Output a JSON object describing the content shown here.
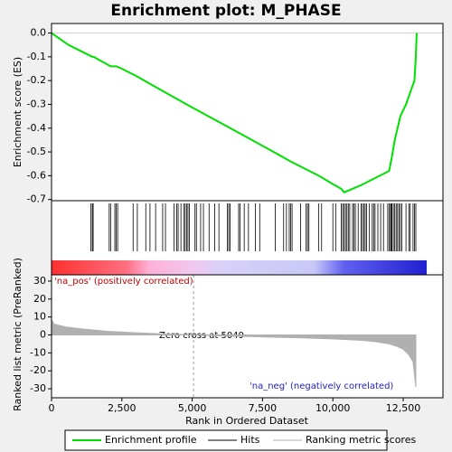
{
  "chart_data": {
    "type": "gsea",
    "title": "Enrichment plot: M_PHASE",
    "xlabel": "Rank in Ordered Dataset",
    "xlim": [
      0,
      13914
    ],
    "xticks": [
      0,
      {
        "value": 2500,
        "label": "2,500"
      },
      {
        "value": 5000,
        "label": "5,000"
      },
      {
        "value": 7500,
        "label": "7,500"
      },
      {
        "value": 10000,
        "label": "10,000"
      },
      {
        "value": 12500,
        "label": "12,500"
      }
    ],
    "es": {
      "name": "Enrichment profile",
      "ylabel": "Enrichment score (ES)",
      "color": "#00e000",
      "ylim": [
        -0.705,
        0.04
      ],
      "yticks": [
        {
          "value": 0,
          "label": "0.0"
        },
        -0.1,
        -0.2,
        -0.3,
        -0.4,
        -0.5,
        -0.6,
        -0.7
      ],
      "x": [
        0,
        600,
        1450,
        1500,
        2100,
        2300,
        2500,
        3000,
        4000,
        5000,
        6000,
        7000,
        8000,
        8500,
        9000,
        9500,
        10000,
        10300,
        10400,
        10600,
        11000,
        11500,
        12000,
        12100,
        12200,
        12400,
        12600,
        12750,
        12900,
        12950,
        12980
      ],
      "values": [
        0,
        -0.05,
        -0.1,
        -0.1,
        -0.14,
        -0.14,
        -0.15,
        -0.18,
        -0.247,
        -0.313,
        -0.377,
        -0.442,
        -0.507,
        -0.54,
        -0.57,
        -0.6,
        -0.635,
        -0.655,
        -0.67,
        -0.66,
        -0.64,
        -0.61,
        -0.58,
        -0.52,
        -0.45,
        -0.35,
        -0.3,
        -0.25,
        -0.2,
        -0.1,
        0
      ]
    },
    "hits": {
      "name": "Hits",
      "x": [
        1400,
        1450,
        1480,
        2050,
        2100,
        2250,
        2300,
        2350,
        2900,
        3050,
        3350,
        3500,
        3700,
        3950,
        4050,
        4350,
        4450,
        4500,
        4600,
        4700,
        4750,
        4800,
        4850,
        4900,
        5100,
        5150,
        5300,
        5400,
        5600,
        5800,
        5950,
        6250,
        6300,
        6350,
        6650,
        6700,
        6850,
        7000,
        7250,
        7400,
        7950,
        8250,
        8350,
        8450,
        8500,
        8550,
        8850,
        9050,
        9100,
        9150,
        9500,
        9600,
        10000,
        10100,
        10300,
        10350,
        10400,
        10450,
        10500,
        10550,
        10600,
        10700,
        10750,
        10800,
        10900,
        11000,
        11050,
        11100,
        11150,
        11200,
        11300,
        11400,
        11450,
        11500,
        11600,
        11700,
        11800,
        11950,
        12000,
        12050,
        12080,
        12100,
        12150,
        12200,
        12250,
        12300,
        12350,
        12400,
        12450,
        12600,
        12700,
        12750,
        12850,
        12900,
        12950
      ]
    },
    "metric": {
      "name": "Ranking metric scores",
      "ylabel": "Ranked list metric (PreRanked)",
      "color": "#b0b0b0",
      "ylim": [
        -35,
        33.5
      ],
      "yticks": [
        30,
        20,
        10,
        0,
        -10,
        -20,
        -30
      ],
      "x": [
        0,
        100,
        500,
        1000,
        2000,
        3000,
        4000,
        5049,
        6000,
        7000,
        8000,
        9000,
        10000,
        11000,
        11500,
        12000,
        12300,
        12500,
        12700,
        12850,
        12950
      ],
      "values": [
        8.5,
        6,
        4.5,
        3.5,
        2,
        1.2,
        0.6,
        0,
        -0.5,
        -0.9,
        -1.3,
        -1.7,
        -2.2,
        -3,
        -3.7,
        -5,
        -6.5,
        -8,
        -11,
        -15,
        -29
      ]
    },
    "zero_cross": 5049,
    "annotations": [
      "'na_pos' (positively correlated)",
      "Zero cross at 5049",
      "'na_neg' (negatively correlated)"
    ]
  }
}
